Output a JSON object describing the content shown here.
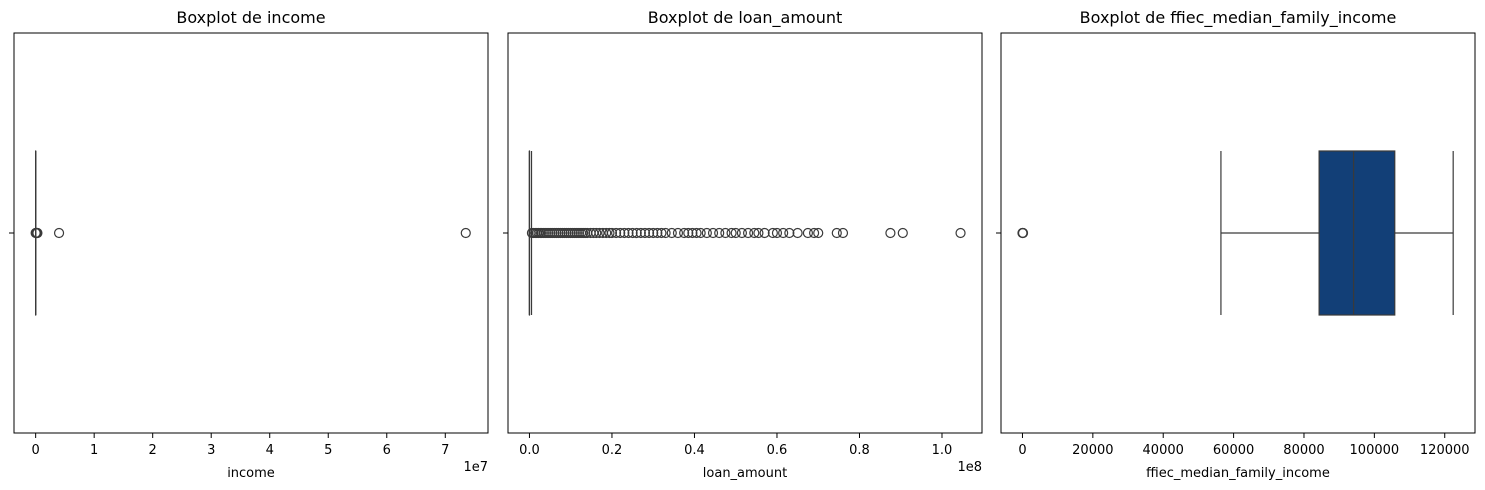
{
  "chart_data": [
    {
      "type": "boxplot",
      "title": "Boxplot de income",
      "xlabel": "income",
      "ylabel": "",
      "xlim": [
        -0.37,
        7.73
      ],
      "axis_offset_label": "1e7",
      "xticks": [
        0,
        1,
        2,
        3,
        4,
        5,
        6,
        7
      ],
      "xtick_labels": [
        "0",
        "1",
        "2",
        "3",
        "4",
        "5",
        "6",
        "7"
      ],
      "box": {
        "whisker_low": 0,
        "q1": 0,
        "median": 0,
        "q3": 0,
        "whisker_high": 0,
        "color": "#0d3f7c"
      },
      "outliers": [
        0.0,
        0.01,
        0.015,
        0.02,
        0.025,
        0.03,
        0.4,
        7.35
      ]
    },
    {
      "type": "boxplot",
      "title": "Boxplot de loan_amount",
      "xlabel": "loan_amount",
      "ylabel": "",
      "xlim": [
        -0.052,
        1.097
      ],
      "axis_offset_label": "1e8",
      "xticks": [
        0.0,
        0.2,
        0.4,
        0.6,
        0.8,
        1.0
      ],
      "xtick_labels": [
        "0.0",
        "0.2",
        "0.4",
        "0.6",
        "0.8",
        "1.0"
      ],
      "box": {
        "whisker_low": 0.0,
        "q1": 0.0,
        "median": 0.0,
        "q3": 0.0,
        "whisker_high": 0.005,
        "color": "#0d3f7c"
      },
      "outliers": [
        0.006,
        0.01,
        0.014,
        0.018,
        0.022,
        0.026,
        0.03,
        0.035,
        0.04,
        0.045,
        0.05,
        0.055,
        0.06,
        0.065,
        0.07,
        0.075,
        0.08,
        0.085,
        0.09,
        0.095,
        0.1,
        0.105,
        0.11,
        0.115,
        0.12,
        0.125,
        0.13,
        0.135,
        0.14,
        0.148,
        0.155,
        0.162,
        0.17,
        0.178,
        0.186,
        0.194,
        0.2,
        0.21,
        0.22,
        0.23,
        0.24,
        0.25,
        0.26,
        0.27,
        0.28,
        0.29,
        0.3,
        0.31,
        0.32,
        0.33,
        0.345,
        0.36,
        0.375,
        0.385,
        0.395,
        0.405,
        0.415,
        0.43,
        0.445,
        0.46,
        0.475,
        0.49,
        0.5,
        0.515,
        0.53,
        0.545,
        0.555,
        0.57,
        0.59,
        0.6,
        0.615,
        0.63,
        0.65,
        0.675,
        0.69,
        0.7,
        0.745,
        0.76,
        0.875,
        0.905,
        1.045
      ]
    },
    {
      "type": "boxplot",
      "title": "Boxplot de ffiec_median_family_income",
      "xlabel": "ffiec_median_family_income",
      "ylabel": "",
      "xlim": [
        -6100,
        128600
      ],
      "axis_offset_label": "",
      "xticks": [
        0,
        20000,
        40000,
        60000,
        80000,
        100000,
        120000
      ],
      "xtick_labels": [
        "0",
        "20000",
        "40000",
        "60000",
        "80000",
        "100000",
        "120000"
      ],
      "box": {
        "whisker_low": 56400,
        "q1": 84300,
        "median": 94100,
        "q3": 105800,
        "whisker_high": 122400,
        "color": "#123f77"
      },
      "outliers": [
        0,
        80,
        160
      ]
    }
  ]
}
